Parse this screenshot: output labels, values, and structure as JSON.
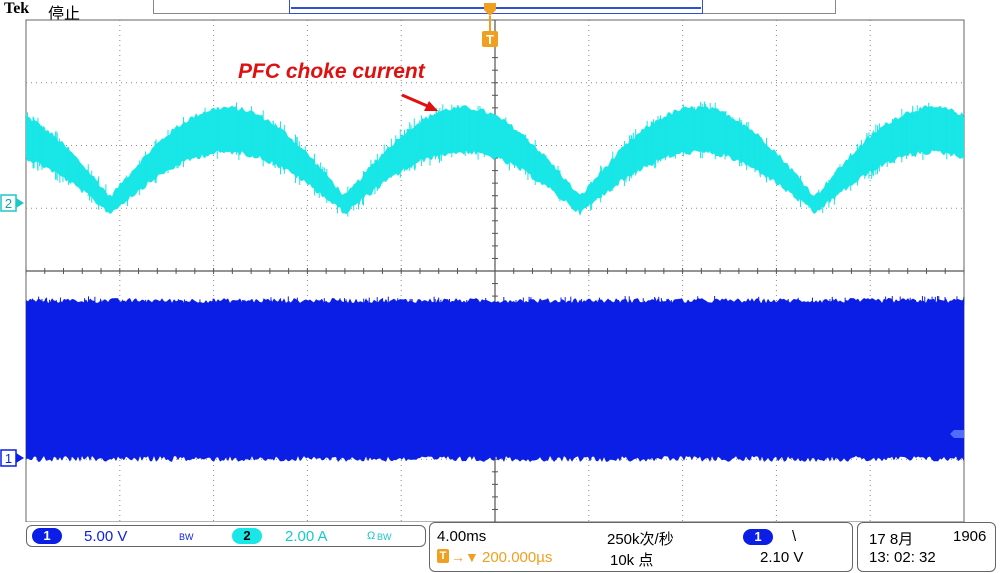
{
  "header": {
    "brand": "Tek",
    "status": "停止",
    "trigger_marker": "T"
  },
  "channels": {
    "ch1": {
      "marker": "1",
      "color": "#0a1ee6"
    },
    "ch2": {
      "marker": "2",
      "color": "#19e6e6"
    }
  },
  "annotation": {
    "text": "PFC choke current",
    "color": "#e01010"
  },
  "readout": {
    "ch1": {
      "badge": "1",
      "scale": "5.00 V",
      "bw": "BW"
    },
    "ch2": {
      "badge": "2",
      "scale": "2.00 A",
      "coupling": "Ω",
      "bw": "BW"
    },
    "timebase": "4.00ms",
    "sample_rate": "250k次/秒",
    "trigger_pos": "200.000µs",
    "record_length": "10k 点",
    "trigger": {
      "source": "1",
      "slope": "\\",
      "level": "2.10 V"
    },
    "date": "17 8月",
    "year": "1906",
    "time": "13: 02: 32"
  }
}
